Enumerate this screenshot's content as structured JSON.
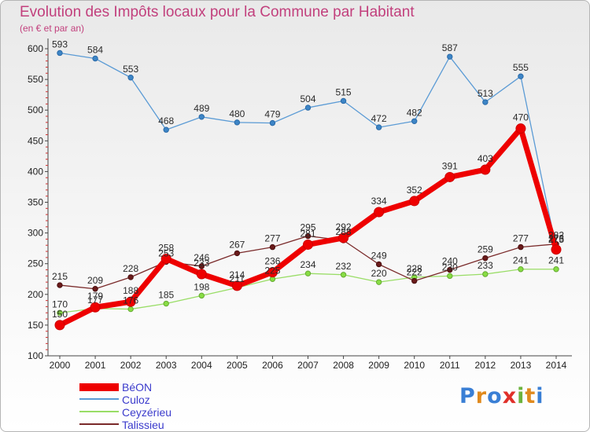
{
  "chart_data": {
    "type": "line",
    "title": "Evolution des Impôts locaux pour la Commune par Habitant",
    "subtitle": "(en € et par an)",
    "categories": [
      "2000",
      "2001",
      "2002",
      "2003",
      "2004",
      "2005",
      "2006",
      "2007",
      "2008",
      "2009",
      "2010",
      "2011",
      "2012",
      "2013",
      "2014"
    ],
    "ylim": [
      100,
      600
    ],
    "yticks": [
      100,
      150,
      200,
      250,
      300,
      350,
      400,
      450,
      500,
      550,
      600
    ],
    "grid": false,
    "legend": "bottom-left",
    "series": [
      {
        "name": "BéON",
        "color": "#ee0000",
        "values": [
          150,
          179,
          188,
          258,
          233,
          214,
          236,
          281,
          292,
          334,
          352,
          391,
          403,
          470,
          273
        ]
      },
      {
        "name": "Culoz",
        "color": "#5b9bd5",
        "values": [
          593,
          584,
          553,
          468,
          489,
          480,
          479,
          504,
          515,
          472,
          482,
          587,
          513,
          555,
          275
        ]
      },
      {
        "name": "Ceyzérieu",
        "color": "#99dd66",
        "values": [
          170,
          177,
          176,
          185,
          198,
          211,
          225,
          234,
          232,
          220,
          228,
          230,
          233,
          241,
          241
        ]
      },
      {
        "name": "Talissieu",
        "color": "#7a2a2a",
        "values": [
          215,
          209,
          228,
          253,
          246,
          267,
          277,
          295,
          288,
          249,
          222,
          240,
          259,
          277,
          282
        ]
      }
    ]
  },
  "logo_text": "Proxiti"
}
